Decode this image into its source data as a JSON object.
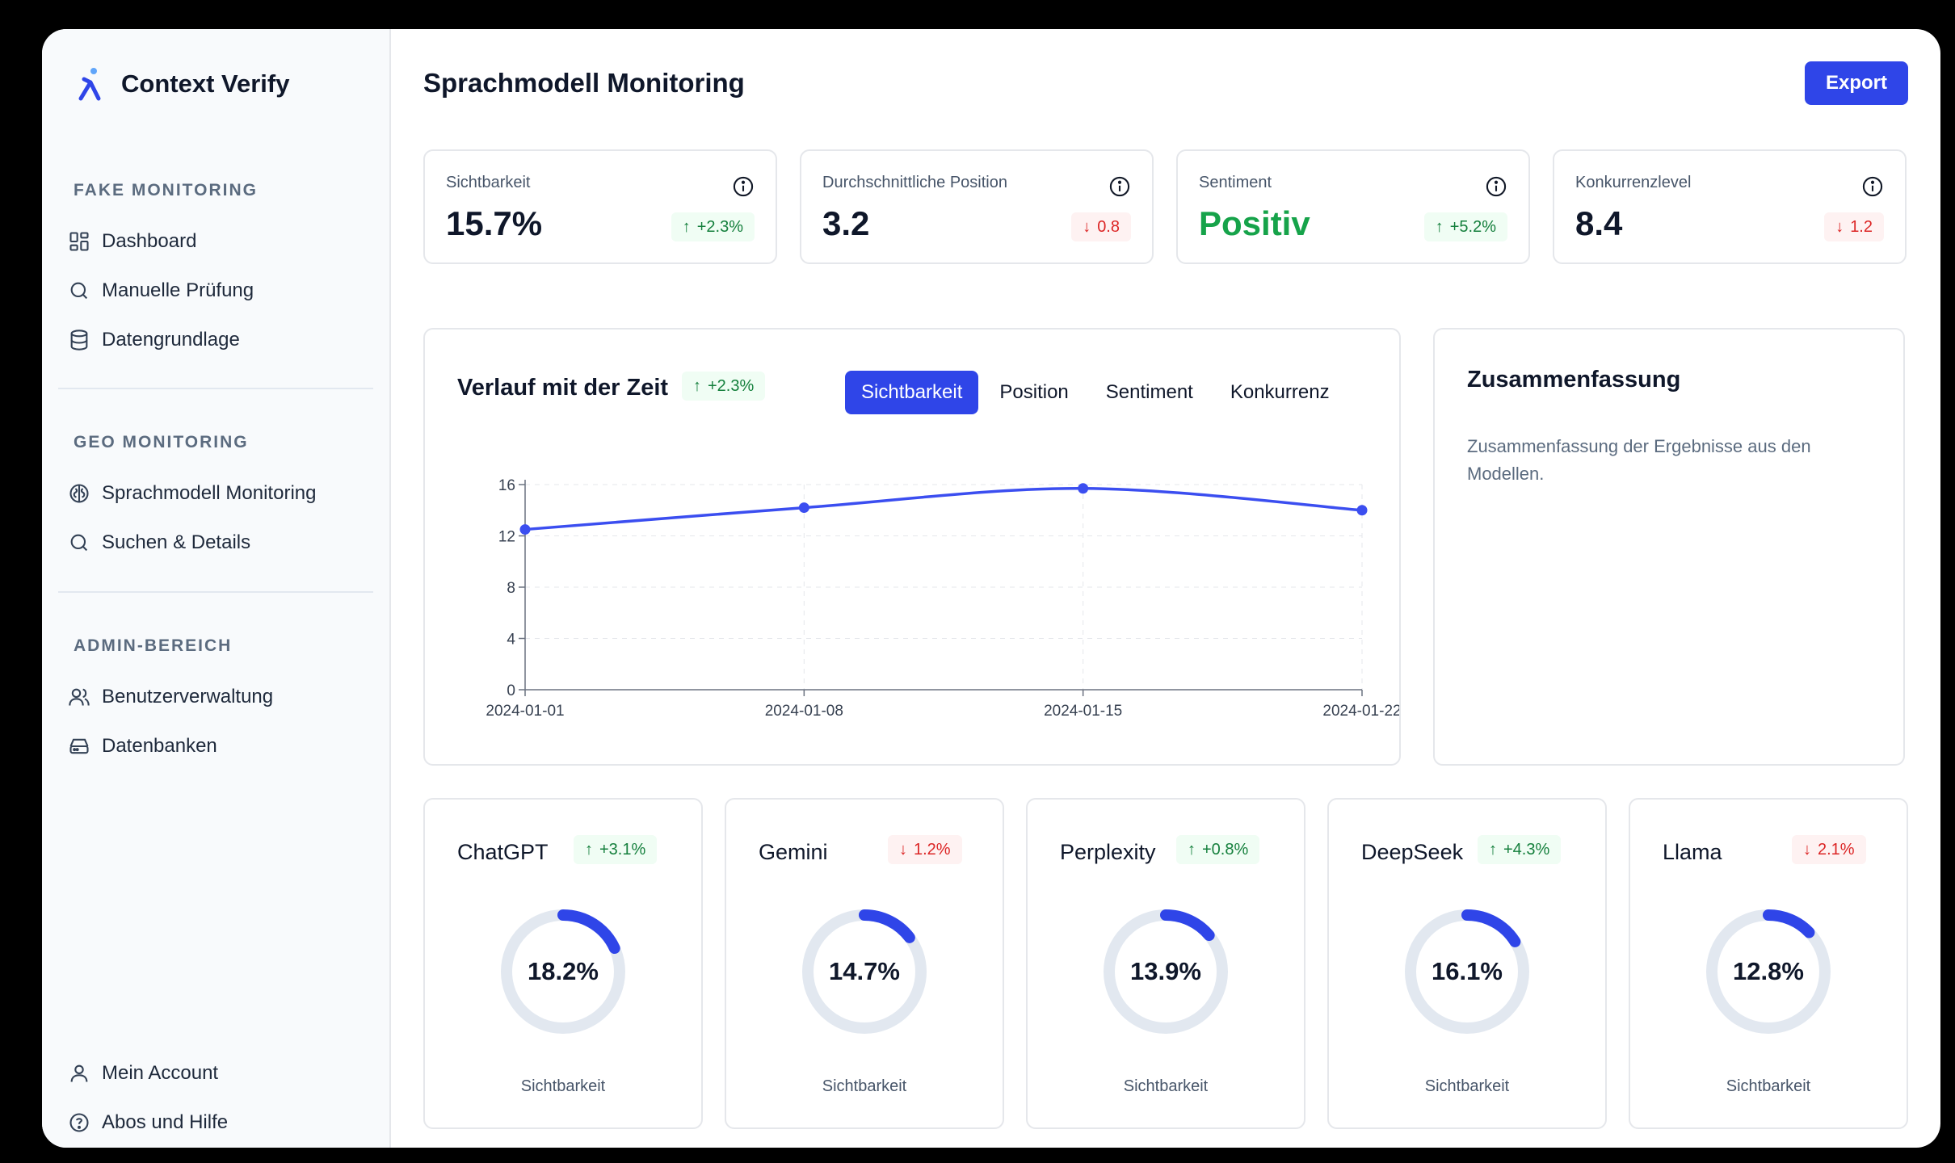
{
  "brand": {
    "name": "Context Verify"
  },
  "sidebar": {
    "groups": [
      {
        "title": "FAKE MONITORING",
        "items": [
          {
            "label": "Dashboard",
            "icon": "dashboard-icon"
          },
          {
            "label": "Manuelle Prüfung",
            "icon": "search-icon"
          },
          {
            "label": "Datengrundlage",
            "icon": "database-icon"
          }
        ]
      },
      {
        "title": "GEO MONITORING",
        "items": [
          {
            "label": "Sprachmodell Monitoring",
            "icon": "brain-icon"
          },
          {
            "label": "Suchen & Details",
            "icon": "search-icon"
          }
        ]
      },
      {
        "title": "ADMIN-BEREICH",
        "items": [
          {
            "label": "Benutzerverwaltung",
            "icon": "users-icon"
          },
          {
            "label": "Datenbanken",
            "icon": "hard-drive-icon"
          }
        ]
      }
    ],
    "footer": [
      {
        "label": "Mein Account",
        "icon": "user-icon"
      },
      {
        "label": "Abos und Hilfe",
        "icon": "help-circle-icon"
      }
    ]
  },
  "header": {
    "title": "Sprachmodell Monitoring",
    "export_label": "Export"
  },
  "kpis": [
    {
      "label": "Sichtbarkeit",
      "value": "15.7%",
      "change": "+2.3%",
      "direction": "up"
    },
    {
      "label": "Durchschnittliche Position",
      "value": "3.2",
      "change": "0.8",
      "direction": "down"
    },
    {
      "label": "Sentiment",
      "value": "Positiv",
      "change": "+5.2%",
      "direction": "up"
    },
    {
      "label": "Konkurrenzlevel",
      "value": "8.4",
      "change": "1.2",
      "direction": "down"
    }
  ],
  "timeline": {
    "title": "Verlauf mit der Zeit",
    "change": "+2.3%",
    "tabs": [
      "Sichtbarkeit",
      "Position",
      "Sentiment",
      "Konkurrenz"
    ],
    "active_tab": "Sichtbarkeit"
  },
  "chart_data": {
    "type": "line",
    "x": [
      "2024-01-01",
      "2024-01-08",
      "2024-01-15",
      "2024-01-22"
    ],
    "series": [
      {
        "values": [
          12.5,
          14.2,
          15.7,
          14.0
        ]
      }
    ],
    "ylim": [
      0,
      16
    ],
    "yticks": [
      0,
      4,
      8,
      12,
      16
    ],
    "grid": true,
    "color": "#3b4ef0"
  },
  "summary": {
    "title": "Zusammenfassung",
    "text": "Zusammenfassung der Ergebnisse aus den Modellen."
  },
  "models": [
    {
      "name": "ChatGPT",
      "change": "+3.1%",
      "direction": "up",
      "value": "18.2%",
      "fraction": 0.182,
      "sub": "Sichtbarkeit"
    },
    {
      "name": "Gemini",
      "change": "1.2%",
      "direction": "down",
      "value": "14.7%",
      "fraction": 0.147,
      "sub": "Sichtbarkeit"
    },
    {
      "name": "Perplexity",
      "change": "+0.8%",
      "direction": "up",
      "value": "13.9%",
      "fraction": 0.139,
      "sub": "Sichtbarkeit"
    },
    {
      "name": "DeepSeek",
      "change": "+4.3%",
      "direction": "up",
      "value": "16.1%",
      "fraction": 0.161,
      "sub": "Sichtbarkeit"
    },
    {
      "name": "Llama",
      "change": "2.1%",
      "direction": "down",
      "value": "12.8%",
      "fraction": 0.128,
      "sub": "Sichtbarkeit"
    }
  ],
  "colors": {
    "accent": "#2f45e8",
    "up": "#15803d",
    "down": "#dc2626",
    "track": "#e2e8f0"
  }
}
